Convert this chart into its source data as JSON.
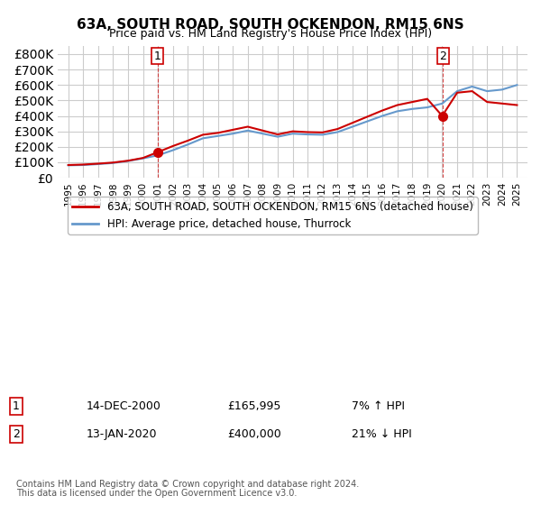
{
  "title": "63A, SOUTH ROAD, SOUTH OCKENDON, RM15 6NS",
  "subtitle": "Price paid vs. HM Land Registry's House Price Index (HPI)",
  "legend_line1": "63A, SOUTH ROAD, SOUTH OCKENDON, RM15 6NS (detached house)",
  "legend_line2": "HPI: Average price, detached house, Thurrock",
  "footnote1": "Contains HM Land Registry data © Crown copyright and database right 2024.",
  "footnote2": "This data is licensed under the Open Government Licence v3.0.",
  "marker1_label": "1",
  "marker1_date": "14-DEC-2000",
  "marker1_price": "£165,995",
  "marker1_hpi": "7% ↑ HPI",
  "marker2_label": "2",
  "marker2_date": "13-JAN-2020",
  "marker2_price": "£400,000",
  "marker2_hpi": "21% ↓ HPI",
  "price_color": "#cc0000",
  "hpi_color": "#6699cc",
  "background_color": "#ffffff",
  "grid_color": "#cccccc",
  "ylim": [
    0,
    850000
  ],
  "yticks": [
    0,
    100000,
    200000,
    300000,
    400000,
    500000,
    600000,
    700000,
    800000
  ],
  "hpi_data": {
    "years": [
      1995,
      1996,
      1997,
      1998,
      1999,
      2000,
      2001,
      2002,
      2003,
      2004,
      2005,
      2006,
      2007,
      2008,
      2009,
      2010,
      2011,
      2012,
      2013,
      2014,
      2015,
      2016,
      2017,
      2018,
      2019,
      2020,
      2021,
      2022,
      2023,
      2024,
      2025
    ],
    "values": [
      80000,
      82000,
      88000,
      95000,
      108000,
      125000,
      145000,
      178000,
      215000,
      255000,
      270000,
      285000,
      305000,
      285000,
      265000,
      285000,
      280000,
      278000,
      295000,
      330000,
      365000,
      400000,
      430000,
      445000,
      455000,
      480000,
      560000,
      590000,
      560000,
      570000,
      600000
    ]
  },
  "price_data": {
    "years": [
      1995,
      1996,
      1997,
      1998,
      1999,
      2000,
      2001,
      2002,
      2003,
      2004,
      2005,
      2006,
      2007,
      2008,
      2009,
      2010,
      2011,
      2012,
      2013,
      2014,
      2015,
      2016,
      2017,
      2018,
      2019,
      2020,
      2021,
      2022,
      2023,
      2024,
      2025
    ],
    "values": [
      82000,
      85000,
      91000,
      98000,
      110000,
      128000,
      165995,
      205000,
      240000,
      278000,
      290000,
      310000,
      330000,
      305000,
      280000,
      300000,
      295000,
      293000,
      315000,
      355000,
      395000,
      435000,
      470000,
      490000,
      510000,
      400000,
      550000,
      560000,
      490000,
      480000,
      470000
    ]
  },
  "sale1_year": 2000.96,
  "sale1_value": 165995,
  "sale2_year": 2020.04,
  "sale2_value": 400000
}
